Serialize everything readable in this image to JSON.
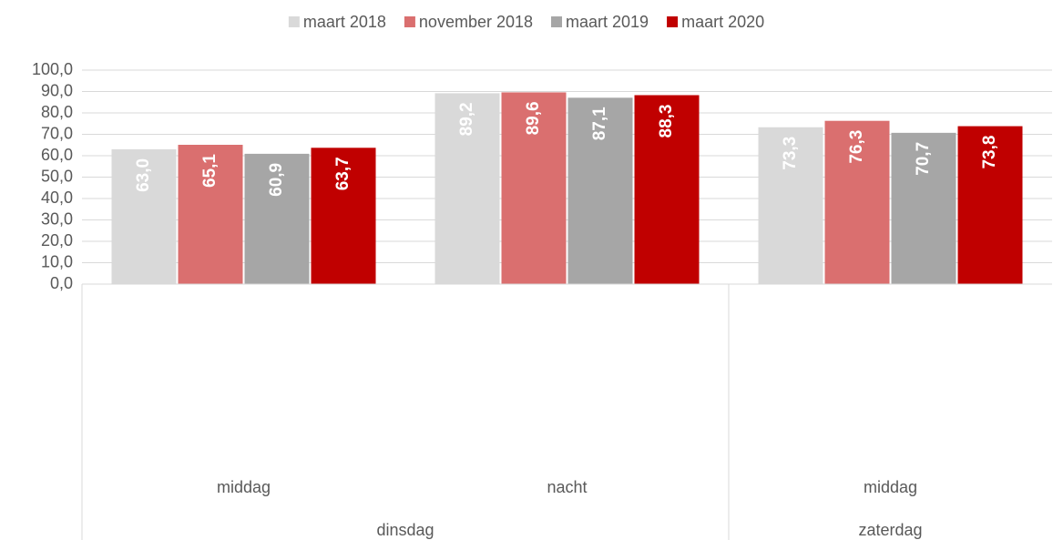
{
  "chart_data": {
    "type": "bar",
    "groups": [
      {
        "name": "dinsdag",
        "categories": [
          "middag",
          "nacht"
        ]
      },
      {
        "name": "zaterdag",
        "categories": [
          "middag"
        ]
      }
    ],
    "series": [
      {
        "name": "maart 2018",
        "color": "#d9d9d9",
        "values": [
          63.0,
          89.2,
          73.3
        ],
        "value_labels": [
          "63,0",
          "89,2",
          "73,3"
        ]
      },
      {
        "name": "november 2018",
        "color": "#da6f6f",
        "values": [
          65.1,
          89.6,
          76.3
        ],
        "value_labels": [
          "65,1",
          "89,6",
          "76,3"
        ]
      },
      {
        "name": "maart 2019",
        "color": "#a6a6a6",
        "values": [
          60.9,
          87.1,
          70.7
        ],
        "value_labels": [
          "60,9",
          "87,1",
          "70,7"
        ]
      },
      {
        "name": "maart 2020",
        "color": "#c00000",
        "values": [
          63.7,
          88.3,
          73.8
        ],
        "value_labels": [
          "63,7",
          "88,3",
          "73,8"
        ]
      }
    ],
    "ylim": [
      0,
      100
    ],
    "yticks": [
      {
        "value": 0,
        "label": "0,0"
      },
      {
        "value": 10,
        "label": "10,0"
      },
      {
        "value": 20,
        "label": "20,0"
      },
      {
        "value": 30,
        "label": "30,0"
      },
      {
        "value": 40,
        "label": "40,0"
      },
      {
        "value": 50,
        "label": "50,0"
      },
      {
        "value": 60,
        "label": "60,0"
      },
      {
        "value": 70,
        "label": "70,0"
      },
      {
        "value": 80,
        "label": "80,0"
      },
      {
        "value": 90,
        "label": "90,0"
      },
      {
        "value": 100,
        "label": "100,0"
      }
    ],
    "grid": true,
    "legend": "top"
  }
}
